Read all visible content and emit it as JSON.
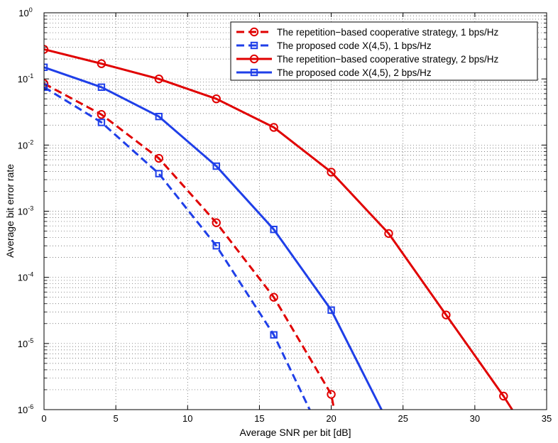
{
  "chart_data": {
    "type": "line",
    "title": "",
    "xlabel": "Average SNR per bit [dB]",
    "ylabel": "Average bit error rate",
    "xlim": [
      0,
      35
    ],
    "ylim_log10": [
      -6,
      0
    ],
    "yscale": "log",
    "grid": true,
    "legend_position": "top-right",
    "xticks": [
      "0",
      "5",
      "10",
      "15",
      "20",
      "25",
      "30",
      "35"
    ],
    "xtick_values": [
      0,
      5,
      10,
      15,
      20,
      25,
      30,
      35
    ],
    "ytick_exponents": [
      "0",
      "-1",
      "-2",
      "-3",
      "-4",
      "-5",
      "-6"
    ],
    "ytick_base": "10",
    "series": [
      {
        "name": "The repetition−based cooperative strategy, 1 bps/Hz",
        "color": "#e00000",
        "dash": true,
        "marker": "circle",
        "x": [
          0,
          4,
          8,
          12,
          16,
          20,
          20.2
        ],
        "y": [
          0.085,
          0.029,
          0.0063,
          0.00067,
          5e-05,
          1.7e-06,
          1e-06
        ],
        "marker_count": 6
      },
      {
        "name": "The proposed code X(4,5), 1 bps/Hz",
        "color": "#1f3fe8",
        "dash": true,
        "marker": "square",
        "x": [
          0,
          4,
          8,
          12,
          16,
          18.5
        ],
        "y": [
          0.075,
          0.022,
          0.0037,
          0.0003,
          1.35e-05,
          1e-06
        ],
        "marker_count": 5
      },
      {
        "name": "The repetition−based cooperative strategy, 2 bps/Hz",
        "color": "#e00000",
        "dash": false,
        "marker": "circle",
        "x": [
          0,
          4,
          8,
          12,
          16,
          20,
          24,
          28,
          32,
          32.6
        ],
        "y": [
          0.28,
          0.17,
          0.1,
          0.05,
          0.0185,
          0.0039,
          0.00046,
          2.7e-05,
          1.6e-06,
          1e-06
        ],
        "marker_count": 9
      },
      {
        "name": "The proposed code X(4,5), 2 bps/Hz",
        "color": "#1f3fe8",
        "dash": false,
        "marker": "square",
        "x": [
          0,
          4,
          8,
          12,
          16,
          20,
          23.5
        ],
        "y": [
          0.15,
          0.075,
          0.027,
          0.0048,
          0.00053,
          3.2e-05,
          1e-06
        ],
        "marker_count": 6
      }
    ]
  }
}
